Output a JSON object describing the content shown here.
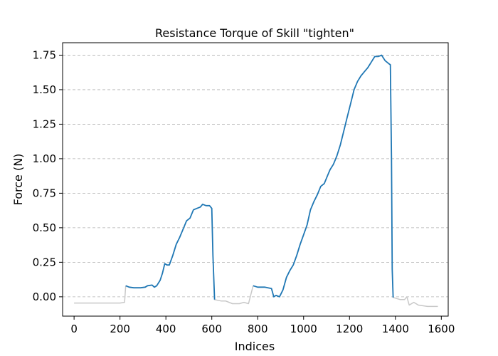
{
  "chart_data": {
    "type": "line",
    "title": "Resistance Torque of Skill \"tighten\"",
    "xlabel": "Indices",
    "ylabel": "Force (N)",
    "xlim": [
      -50,
      1630
    ],
    "ylim": [
      -0.14,
      1.84
    ],
    "xticks": [
      0,
      200,
      400,
      600,
      800,
      1000,
      1200,
      1400,
      1600
    ],
    "yticks": [
      0.0,
      0.25,
      0.5,
      0.75,
      1.0,
      1.25,
      1.5,
      1.75
    ],
    "ytick_labels": [
      "0.00",
      "0.25",
      "0.50",
      "0.75",
      "1.00",
      "1.25",
      "1.50",
      "1.75"
    ],
    "grid": "y-dashed",
    "series": [
      {
        "color": "#c8c8c8",
        "role": "background",
        "segments": [
          [
            [
              0,
              -0.045
            ],
            [
              50,
              -0.045
            ],
            [
              100,
              -0.045
            ],
            [
              150,
              -0.045
            ],
            [
              200,
              -0.045
            ],
            [
              220,
              -0.04
            ],
            [
              225,
              0.08
            ]
          ],
          [
            [
              610,
              -0.02
            ],
            [
              640,
              -0.03
            ],
            [
              660,
              -0.03
            ],
            [
              690,
              -0.05
            ],
            [
              720,
              -0.05
            ],
            [
              740,
              -0.04
            ],
            [
              760,
              -0.05
            ],
            [
              780,
              0.08
            ]
          ],
          [
            [
              1390,
              -0.005
            ],
            [
              1420,
              -0.02
            ],
            [
              1440,
              -0.02
            ],
            [
              1450,
              0.0
            ],
            [
              1460,
              -0.06
            ],
            [
              1480,
              -0.04
            ],
            [
              1500,
              -0.06
            ],
            [
              1540,
              -0.07
            ],
            [
              1585,
              -0.07
            ]
          ]
        ]
      },
      {
        "color": "#1f77b4",
        "role": "active",
        "segments": [
          [
            [
              225,
              0.08
            ],
            [
              240,
              0.07
            ],
            [
              260,
              0.065
            ],
            [
              290,
              0.065
            ],
            [
              310,
              0.07
            ],
            [
              320,
              0.08
            ],
            [
              340,
              0.085
            ],
            [
              350,
              0.07
            ],
            [
              360,
              0.08
            ],
            [
              375,
              0.12
            ],
            [
              385,
              0.17
            ],
            [
              395,
              0.24
            ],
            [
              405,
              0.23
            ],
            [
              415,
              0.23
            ],
            [
              430,
              0.3
            ],
            [
              445,
              0.38
            ],
            [
              460,
              0.43
            ],
            [
              475,
              0.49
            ],
            [
              490,
              0.55
            ],
            [
              505,
              0.57
            ],
            [
              520,
              0.63
            ],
            [
              535,
              0.64
            ],
            [
              550,
              0.65
            ],
            [
              560,
              0.67
            ],
            [
              575,
              0.66
            ],
            [
              590,
              0.66
            ],
            [
              600,
              0.64
            ],
            [
              605,
              0.3
            ],
            [
              612,
              -0.02
            ]
          ],
          [
            [
              780,
              0.08
            ],
            [
              800,
              0.07
            ],
            [
              830,
              0.07
            ],
            [
              860,
              0.06
            ],
            [
              870,
              0.0
            ],
            [
              880,
              0.01
            ],
            [
              895,
              0.0
            ],
            [
              910,
              0.05
            ],
            [
              925,
              0.14
            ],
            [
              940,
              0.19
            ],
            [
              955,
              0.23
            ],
            [
              970,
              0.3
            ],
            [
              985,
              0.38
            ],
            [
              1000,
              0.45
            ],
            [
              1015,
              0.52
            ],
            [
              1030,
              0.63
            ],
            [
              1045,
              0.69
            ],
            [
              1060,
              0.74
            ],
            [
              1075,
              0.8
            ],
            [
              1090,
              0.82
            ],
            [
              1105,
              0.88
            ],
            [
              1115,
              0.92
            ],
            [
              1130,
              0.96
            ],
            [
              1145,
              1.02
            ],
            [
              1160,
              1.1
            ],
            [
              1175,
              1.2
            ],
            [
              1190,
              1.3
            ],
            [
              1205,
              1.4
            ],
            [
              1220,
              1.5
            ],
            [
              1235,
              1.56
            ],
            [
              1250,
              1.6
            ],
            [
              1265,
              1.63
            ],
            [
              1280,
              1.66
            ],
            [
              1295,
              1.7
            ],
            [
              1310,
              1.74
            ],
            [
              1325,
              1.74
            ],
            [
              1340,
              1.75
            ],
            [
              1355,
              1.71
            ],
            [
              1370,
              1.69
            ],
            [
              1378,
              1.68
            ],
            [
              1383,
              1.0
            ],
            [
              1386,
              0.2
            ],
            [
              1390,
              -0.005
            ]
          ]
        ]
      }
    ]
  }
}
